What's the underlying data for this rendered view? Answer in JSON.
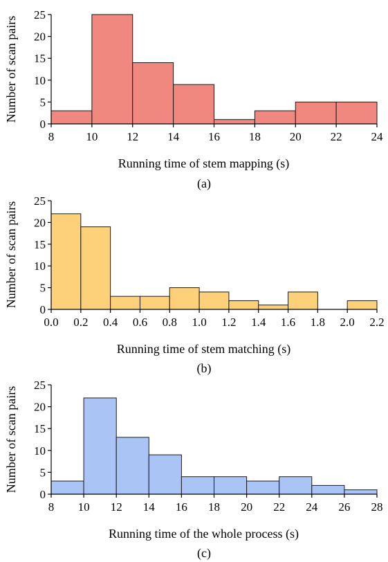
{
  "chart_data": [
    {
      "type": "bar",
      "caption": "(a)",
      "xlabel": "Running time of stem mapping (s)",
      "ylabel": "Number of scan pairs",
      "bar_color": "#f08880",
      "bins": [
        [
          8,
          10
        ],
        [
          10,
          12
        ],
        [
          12,
          14
        ],
        [
          14,
          16
        ],
        [
          16,
          18
        ],
        [
          18,
          20
        ],
        [
          20,
          22
        ],
        [
          22,
          24
        ]
      ],
      "values": [
        3,
        25,
        14,
        9,
        1,
        3,
        5,
        5
      ],
      "xlim": [
        8,
        24
      ],
      "ylim": [
        0,
        25
      ],
      "xticks": [
        8,
        10,
        12,
        14,
        16,
        18,
        20,
        22,
        24
      ],
      "xtick_labels": [
        "8",
        "10",
        "12",
        "14",
        "16",
        "18",
        "20",
        "22",
        "24"
      ],
      "yticks": [
        0,
        5,
        10,
        15,
        20,
        25
      ],
      "ytick_labels": [
        "0",
        "5",
        "10",
        "15",
        "20",
        "25"
      ],
      "grid": false
    },
    {
      "type": "bar",
      "caption": "(b)",
      "xlabel": "Running time of stem matching (s)",
      "ylabel": "Number of scan pairs",
      "bar_color": "#fdd07a",
      "bins": [
        [
          0.0,
          0.2
        ],
        [
          0.2,
          0.4
        ],
        [
          0.4,
          0.6
        ],
        [
          0.6,
          0.8
        ],
        [
          0.8,
          1.0
        ],
        [
          1.0,
          1.2
        ],
        [
          1.2,
          1.4
        ],
        [
          1.4,
          1.6
        ],
        [
          1.6,
          1.8
        ],
        [
          1.8,
          2.0
        ],
        [
          2.0,
          2.2
        ]
      ],
      "values": [
        22,
        19,
        3,
        3,
        5,
        4,
        2,
        1,
        4,
        0,
        2
      ],
      "xlim": [
        0.0,
        2.2
      ],
      "ylim": [
        0,
        25
      ],
      "xticks": [
        0.0,
        0.2,
        0.4,
        0.6,
        0.8,
        1.0,
        1.2,
        1.4,
        1.6,
        1.8,
        2.0,
        2.2
      ],
      "xtick_labels": [
        "0.0",
        "0.2",
        "0.4",
        "0.6",
        "0.8",
        "1.0",
        "1.2",
        "1.4",
        "1.6",
        "1.8",
        "2.0",
        "2.2"
      ],
      "yticks": [
        0,
        5,
        10,
        15,
        20,
        25
      ],
      "ytick_labels": [
        "0",
        "5",
        "10",
        "15",
        "20",
        "25"
      ],
      "grid": false
    },
    {
      "type": "bar",
      "caption": "(c)",
      "xlabel": "Running time of the whole process (s)",
      "ylabel": "Number of scan pairs",
      "bar_color": "#a9c4f5",
      "bins": [
        [
          8,
          10
        ],
        [
          10,
          12
        ],
        [
          12,
          14
        ],
        [
          14,
          16
        ],
        [
          16,
          18
        ],
        [
          18,
          20
        ],
        [
          20,
          22
        ],
        [
          22,
          24
        ],
        [
          24,
          26
        ],
        [
          26,
          28
        ]
      ],
      "values": [
        3,
        22,
        13,
        9,
        4,
        4,
        3,
        4,
        2,
        1
      ],
      "xlim": [
        8,
        28
      ],
      "ylim": [
        0,
        25
      ],
      "xticks": [
        8,
        10,
        12,
        14,
        16,
        18,
        20,
        22,
        24,
        26,
        28
      ],
      "xtick_labels": [
        "8",
        "10",
        "12",
        "14",
        "16",
        "18",
        "20",
        "22",
        "24",
        "26",
        "28"
      ],
      "yticks": [
        0,
        5,
        10,
        15,
        20,
        25
      ],
      "ytick_labels": [
        "0",
        "5",
        "10",
        "15",
        "20",
        "25"
      ],
      "grid": false
    }
  ]
}
